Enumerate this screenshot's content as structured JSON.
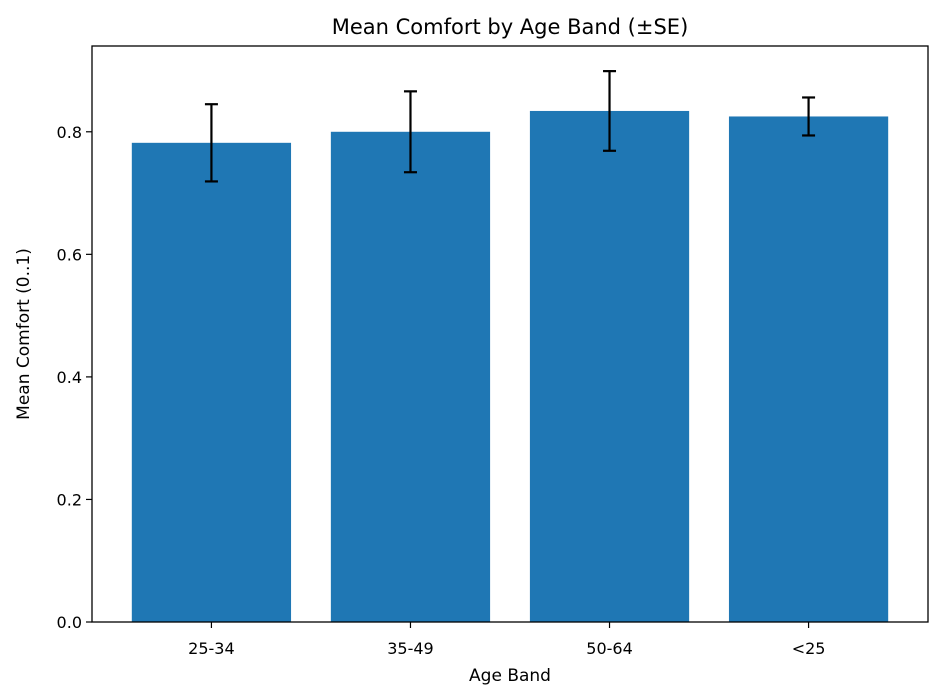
{
  "chart_data": {
    "type": "bar",
    "title": "Mean Comfort by Age Band (±SE)",
    "xlabel": "Age Band",
    "ylabel": "Mean Comfort (0..1)",
    "categories": [
      "25-34",
      "35-49",
      "50-64",
      "<25"
    ],
    "values": [
      0.782,
      0.8,
      0.834,
      0.825
    ],
    "errors": [
      0.063,
      0.066,
      0.065,
      0.031
    ],
    "ylim": [
      0,
      0.94
    ],
    "yticks": [
      0.0,
      0.2,
      0.4,
      0.6,
      0.8
    ],
    "ytick_labels": [
      "0.0",
      "0.2",
      "0.4",
      "0.6",
      "0.8"
    ],
    "bar_color": "#1f77b4",
    "error_color": "#000000",
    "grid": false
  }
}
